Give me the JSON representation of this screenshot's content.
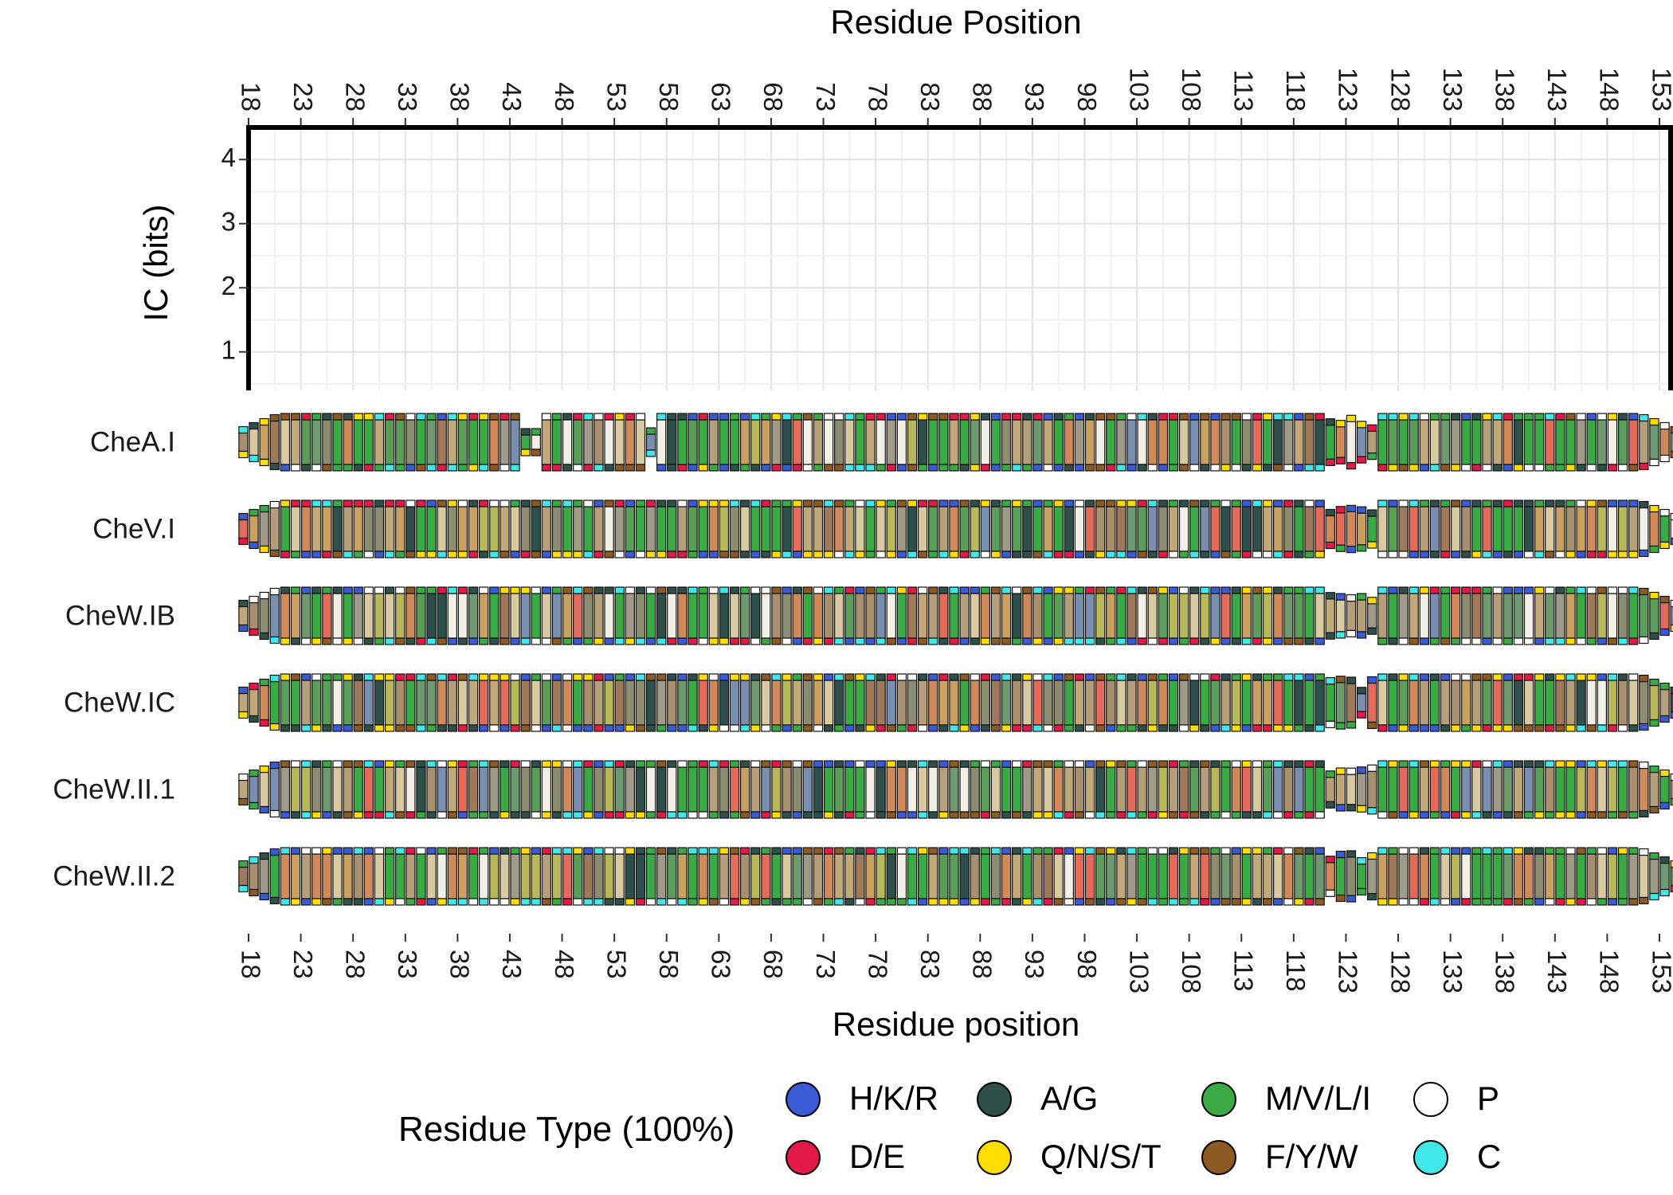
{
  "chart_data": {
    "type": "heatmap",
    "top_axis_title": "Residue Position",
    "bottom_axis_title": "Residue position",
    "ylabel": "IC (bits)",
    "y_ticks": [
      "1",
      "2",
      "3",
      "4"
    ],
    "ylim": [
      0.4,
      4.5
    ],
    "x_range": [
      18,
      153
    ],
    "x_ticks": [
      "18",
      "23",
      "28",
      "33",
      "38",
      "43",
      "48",
      "53",
      "58",
      "63",
      "68",
      "73",
      "78",
      "83",
      "88",
      "93",
      "98",
      "103",
      "108",
      "113",
      "118",
      "123",
      "128",
      "133",
      "138",
      "143",
      "148",
      "153"
    ],
    "grid": true,
    "rows": [
      {
        "label": "CheA.I",
        "pattern_seed": 3,
        "gap_start": 121
      },
      {
        "label": "CheV.I",
        "pattern_seed": 7,
        "gap_start": 121
      },
      {
        "label": "CheW.IB",
        "pattern_seed": 11,
        "gap_start": 121
      },
      {
        "label": "CheW.IC",
        "pattern_seed": 17,
        "gap_start": 121
      },
      {
        "label": "CheW.II.1",
        "pattern_seed": 23,
        "gap_start": 121
      },
      {
        "label": "CheW.II.2",
        "pattern_seed": 29,
        "gap_start": 121
      }
    ],
    "legend": {
      "title": "Residue Type (100%)",
      "position": "bottom",
      "entries": [
        {
          "label": "H/K/R",
          "color": "#3b5bd6"
        },
        {
          "label": "D/E",
          "color": "#e31a47"
        },
        {
          "label": "A/G",
          "color": "#2f4f4a"
        },
        {
          "label": "Q/N/S/T",
          "color": "#ffdd00"
        },
        {
          "label": "M/V/L/I",
          "color": "#3aaa45"
        },
        {
          "label": "F/Y/W",
          "color": "#8c5a22"
        },
        {
          "label": "P",
          "color": "#ffffff"
        },
        {
          "label": "C",
          "color": "#40e8ea"
        }
      ]
    }
  }
}
